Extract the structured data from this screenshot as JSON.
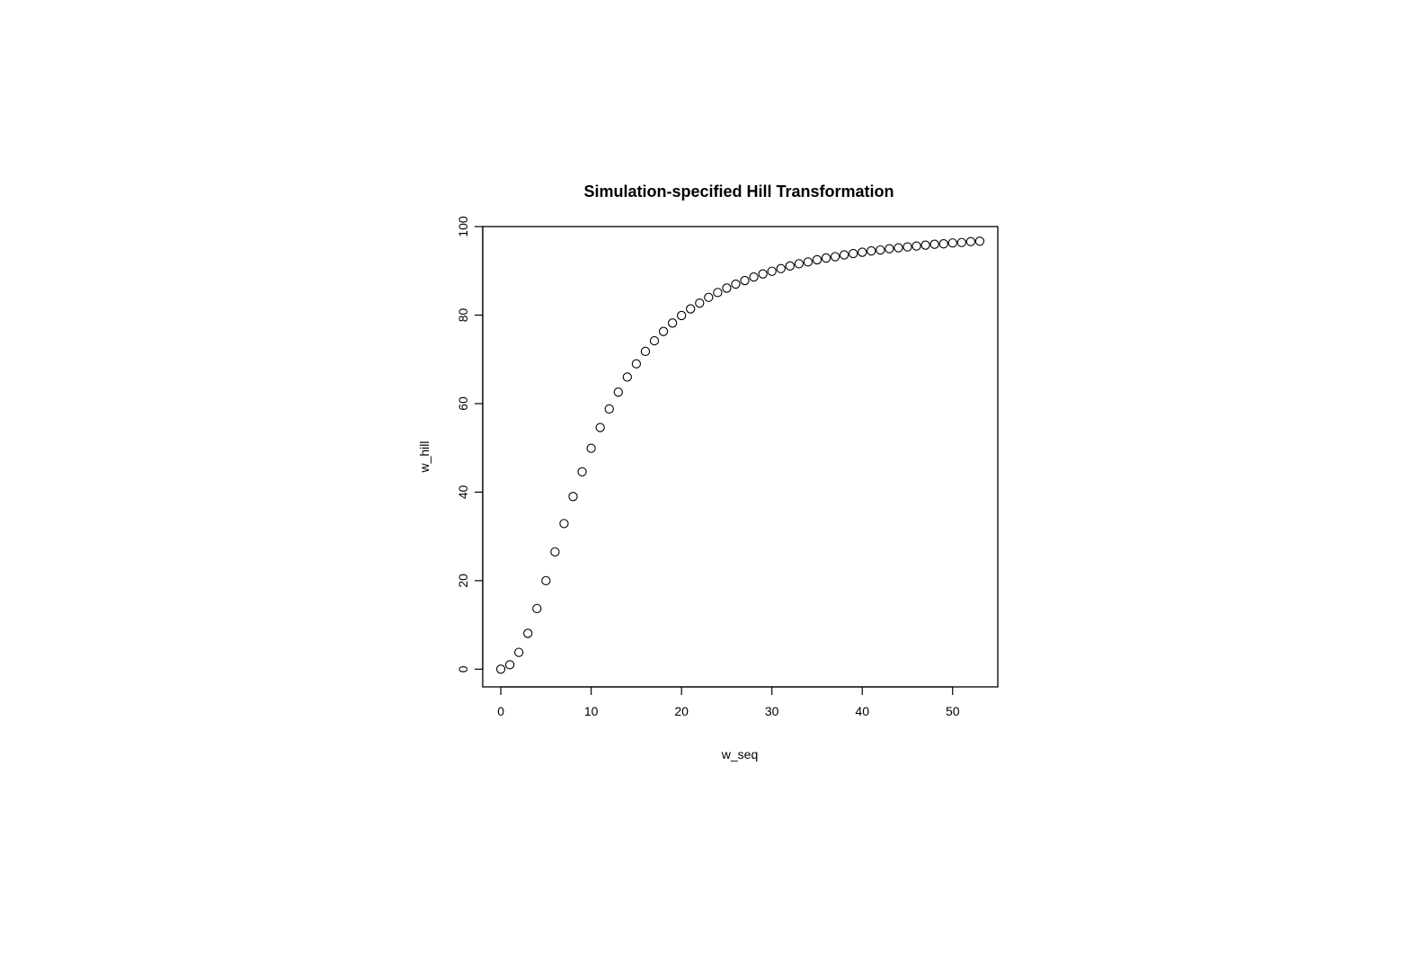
{
  "chart_data": {
    "type": "scatter",
    "title": "Simulation-specified Hill Transformation",
    "xlabel": "w_seq",
    "ylabel": "w_hill",
    "xlim": [
      -2,
      55
    ],
    "ylim": [
      -4,
      100
    ],
    "xticks": [
      0,
      10,
      20,
      30,
      40,
      50
    ],
    "yticks": [
      0,
      20,
      40,
      60,
      80,
      100
    ],
    "grid": false,
    "legend": "none",
    "marker": "open-circle",
    "colors": {
      "marker": "#000000",
      "axis": "#000000"
    },
    "series": [
      {
        "x": [
          0,
          1,
          2,
          3,
          4,
          5,
          6,
          7,
          8,
          9,
          10,
          11,
          12,
          13,
          14,
          15,
          16,
          17,
          18,
          19,
          20,
          21,
          22,
          23,
          24,
          25,
          26,
          27,
          28,
          29,
          30,
          31,
          32,
          33,
          34,
          35,
          36,
          37,
          38,
          39,
          40,
          41,
          42,
          43,
          44,
          45,
          46,
          47,
          48,
          49,
          50,
          51,
          52,
          53
        ],
        "y": [
          0.0,
          1.0,
          3.8,
          8.1,
          13.7,
          20.0,
          26.5,
          32.9,
          39.0,
          44.6,
          49.9,
          54.6,
          58.8,
          62.6,
          66.0,
          69.0,
          71.8,
          74.2,
          76.3,
          78.2,
          79.9,
          81.4,
          82.7,
          84.0,
          85.1,
          86.1,
          87.0,
          87.8,
          88.6,
          89.3,
          89.9,
          90.5,
          91.1,
          91.6,
          92.0,
          92.5,
          92.9,
          93.2,
          93.6,
          93.9,
          94.2,
          94.5,
          94.7,
          95.0,
          95.2,
          95.4,
          95.6,
          95.8,
          96.0,
          96.1,
          96.3,
          96.4,
          96.6,
          96.7
        ]
      }
    ]
  }
}
